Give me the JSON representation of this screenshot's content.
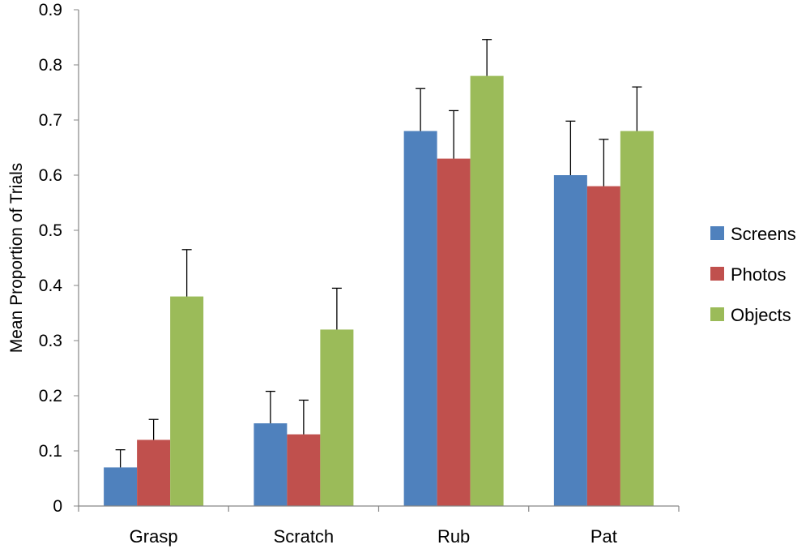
{
  "chart_data": {
    "type": "bar",
    "title": "",
    "xlabel": "",
    "ylabel": "Mean Proportion of Trials",
    "ylim": [
      0,
      0.9
    ],
    "yticks": [
      "0",
      "0.1",
      "0.2",
      "0.3",
      "0.4",
      "0.5",
      "0.6",
      "0.7",
      "0.8",
      "0.9"
    ],
    "categories": [
      "Grasp",
      "Scratch",
      "Rub",
      "Pat"
    ],
    "series": [
      {
        "name": "Screens",
        "color": "#4F81BD",
        "values": [
          0.07,
          0.15,
          0.68,
          0.6
        ],
        "errors": [
          0.032,
          0.058,
          0.077,
          0.098
        ]
      },
      {
        "name": "Photos",
        "color": "#C0504D",
        "values": [
          0.12,
          0.13,
          0.63,
          0.58
        ],
        "errors": [
          0.037,
          0.062,
          0.087,
          0.085
        ]
      },
      {
        "name": "Objects",
        "color": "#9BBB59",
        "values": [
          0.38,
          0.32,
          0.78,
          0.68
        ],
        "errors": [
          0.085,
          0.075,
          0.066,
          0.08
        ]
      }
    ],
    "grid": false,
    "legend_position": "right",
    "error_bars": "positive"
  }
}
